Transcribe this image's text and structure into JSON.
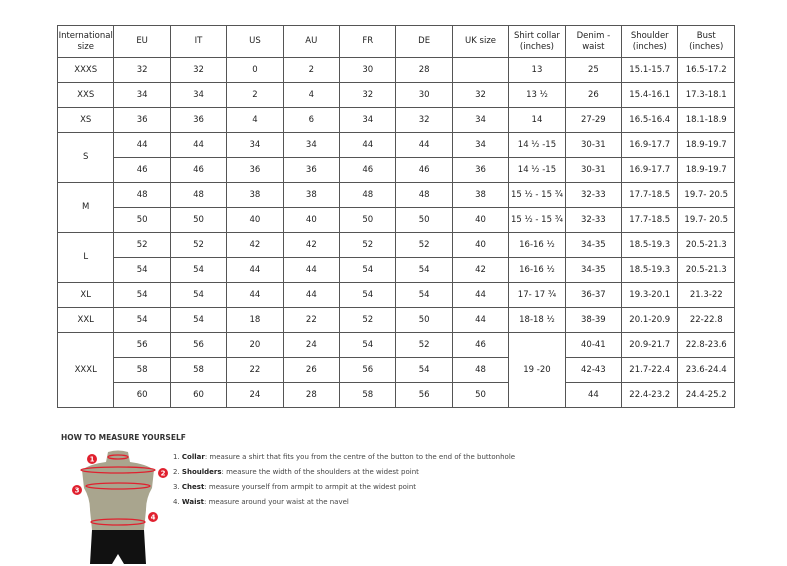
{
  "headers": [
    "International size",
    "EU",
    "IT",
    "US",
    "AU",
    "FR",
    "DE",
    "UK size",
    "Shirt collar (inches)",
    "Denim - waist",
    "Shoulder (inches)",
    "Bust (inches)"
  ],
  "groups": [
    {
      "size": "XXXS",
      "rows": [
        [
          "32",
          "32",
          "0",
          "2",
          "30",
          "28",
          "",
          "13",
          "25",
          "15.1-15.7",
          "16.5-17.2"
        ]
      ]
    },
    {
      "size": "XXS",
      "rows": [
        [
          "34",
          "34",
          "2",
          "4",
          "32",
          "30",
          "32",
          "13 ½",
          "26",
          "15.4-16.1",
          "17.3-18.1"
        ]
      ]
    },
    {
      "size": "XS",
      "rows": [
        [
          "36",
          "36",
          "4",
          "6",
          "34",
          "32",
          "34",
          "14",
          "27-29",
          "16.5-16.4",
          "18.1-18.9"
        ]
      ]
    },
    {
      "size": "S",
      "rows": [
        [
          "44",
          "44",
          "34",
          "34",
          "44",
          "44",
          "34",
          "14 ½ -15",
          "30-31",
          "16.9-17.7",
          "18.9-19.7"
        ],
        [
          "46",
          "46",
          "36",
          "36",
          "46",
          "46",
          "36",
          "14 ½ -15",
          "30-31",
          "16.9-17.7",
          "18.9-19.7"
        ]
      ]
    },
    {
      "size": "M",
      "rows": [
        [
          "48",
          "48",
          "38",
          "38",
          "48",
          "48",
          "38",
          "15 ½ - 15 ¾",
          "32-33",
          "17.7-18.5",
          "19.7- 20.5"
        ],
        [
          "50",
          "50",
          "40",
          "40",
          "50",
          "50",
          "40",
          "15 ½ - 15 ¾",
          "32-33",
          "17.7-18.5",
          "19.7- 20.5"
        ]
      ]
    },
    {
      "size": "L",
      "rows": [
        [
          "52",
          "52",
          "42",
          "42",
          "52",
          "52",
          "40",
          "16-16 ½",
          "34-35",
          "18.5-19.3",
          "20.5-21.3"
        ],
        [
          "54",
          "54",
          "44",
          "44",
          "54",
          "54",
          "42",
          "16-16 ½",
          "34-35",
          "18.5-19.3",
          "20.5-21.3"
        ]
      ]
    },
    {
      "size": "XL",
      "rows": [
        [
          "54",
          "54",
          "44",
          "44",
          "54",
          "54",
          "44",
          "17- 17 ¾",
          "36-37",
          "19.3-20.1",
          "21.3-22"
        ]
      ]
    },
    {
      "size": "XXL",
      "rows": [
        [
          "54",
          "54",
          "18",
          "22",
          "52",
          "50",
          "44",
          "18-18 ½",
          "38-39",
          "20.1-20.9",
          "22-22.8"
        ]
      ]
    },
    {
      "size": "XXXL",
      "collar_merged": true,
      "rows": [
        [
          "56",
          "56",
          "20",
          "24",
          "54",
          "52",
          "46",
          "19 -20",
          "40-41",
          "20.9-21.7",
          "22.8-23.6"
        ],
        [
          "58",
          "58",
          "22",
          "26",
          "56",
          "54",
          "48",
          null,
          "42-43",
          "21.7-22.4",
          "23.6-24.4"
        ],
        [
          "60",
          "60",
          "24",
          "28",
          "58",
          "56",
          "50",
          null,
          "44",
          "22.4-23.2",
          "24.4-25.2"
        ]
      ]
    }
  ],
  "howto": {
    "title": "HOW TO MEASURE YOURSELF",
    "steps": [
      {
        "num": "1.",
        "term": "Collar",
        "text": ": measure a shirt that fits you from the centre of the button to the end of the buttonhole"
      },
      {
        "num": "2.",
        "term": "Shoulders",
        "text": ": measure the width of the shoulders at the widest point"
      },
      {
        "num": "3.",
        "term": "Chest",
        "text": ": measure yourself from armpit to armpit at the widest point"
      },
      {
        "num": "4.",
        "term": "Waist",
        "text": ": measure around your waist at the navel"
      }
    ],
    "markers": [
      "1",
      "2",
      "3",
      "4"
    ]
  },
  "colors": {
    "accent": "#e0202e",
    "torso": "#a9a58e",
    "shorts": "#111111"
  }
}
